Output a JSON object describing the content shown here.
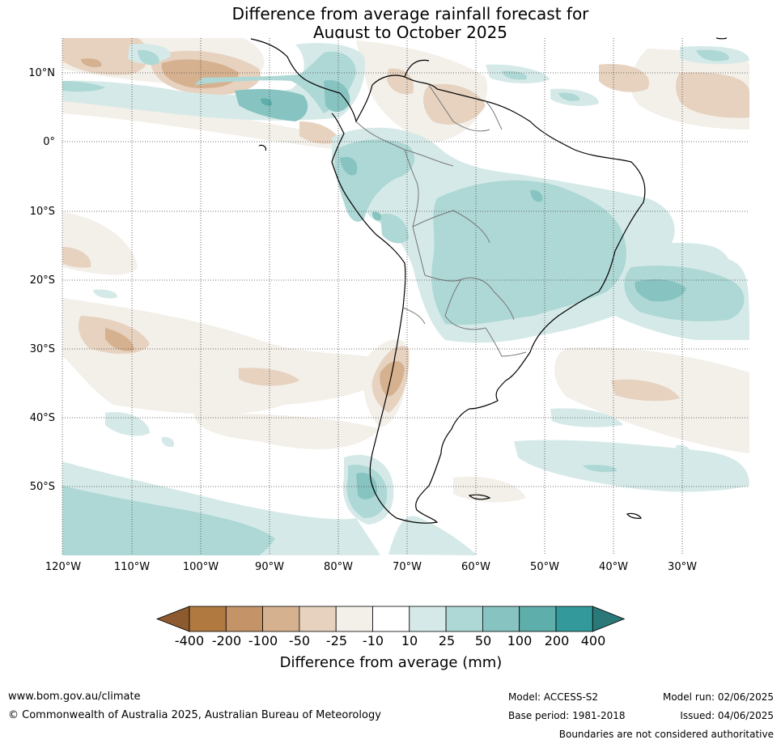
{
  "title": {
    "line1": "Difference from average rainfall forecast for",
    "line2": "August to October 2025"
  },
  "axes": {
    "lat_labels": [
      "10°N",
      "0°",
      "10°S",
      "20°S",
      "30°S",
      "40°S",
      "50°S"
    ],
    "lon_labels": [
      "120°W",
      "110°W",
      "100°W",
      "90°W",
      "80°W",
      "70°W",
      "60°W",
      "50°W",
      "40°W",
      "30°W"
    ],
    "gridlines": "dotted"
  },
  "colorbar": {
    "title": "Difference from average (mm)",
    "tick_labels": [
      "-400",
      "-200",
      "-100",
      "-50",
      "-25",
      "-10",
      "10",
      "25",
      "50",
      "100",
      "200",
      "400"
    ],
    "colors": [
      "#8c5a2e",
      "#b07940",
      "#c49468",
      "#d6b190",
      "#e6d2bf",
      "#f3efe9",
      "#ffffff",
      "#d5eae8",
      "#aed8d5",
      "#87c4c1",
      "#5eaeab",
      "#33999a",
      "#2b7878"
    ]
  },
  "footer": {
    "website": "www.bom.gov.au/climate",
    "copyright": "© Commonwealth of Australia 2025, Australian Bureau of Meteorology",
    "model": "Model: ACCESS-S2",
    "base_period": "Base period: 1981-2018",
    "model_run": "Model run: 02/06/2025",
    "issued": "Issued: 04/06/2025",
    "disclaimer": "Boundaries are not considered authoritative"
  }
}
